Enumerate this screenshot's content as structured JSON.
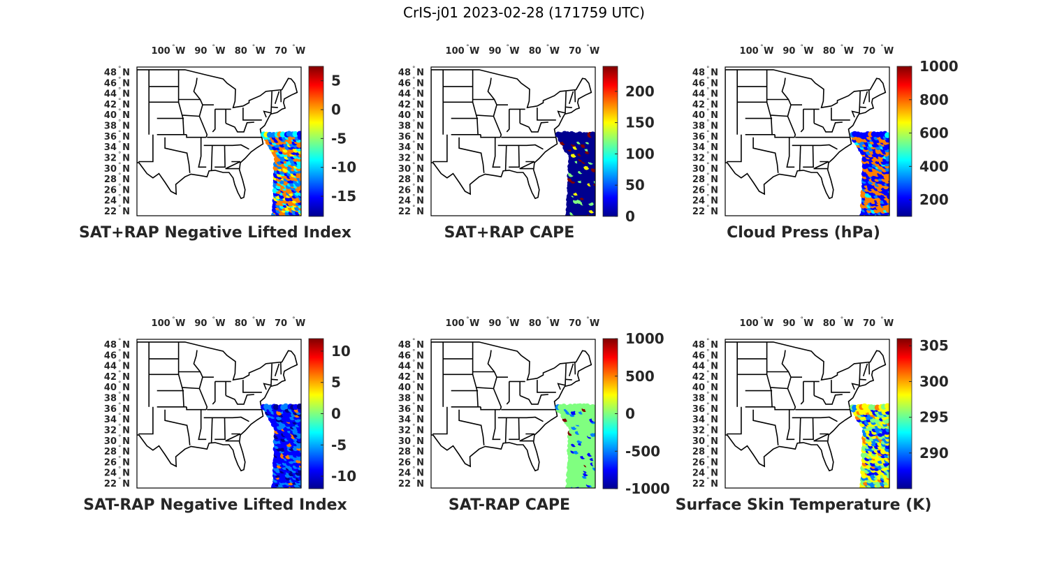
{
  "figure": {
    "title": "CrIS-j01 2023-02-28 (171759 UTC)"
  },
  "colormap": [
    "#00008f",
    "#0000ff",
    "#0080ff",
    "#00ffff",
    "#80ff80",
    "#ffff00",
    "#ff8000",
    "#ff0000",
    "#800000"
  ],
  "map": {
    "lon_labels": [
      {
        "deg": "100",
        "dir": "W"
      },
      {
        "deg": "90",
        "dir": "W"
      },
      {
        "deg": "80",
        "dir": "W"
      },
      {
        "deg": "70",
        "dir": "W"
      }
    ],
    "lat_labels": [
      {
        "deg": "48",
        "dir": "N"
      },
      {
        "deg": "46",
        "dir": "N"
      },
      {
        "deg": "44",
        "dir": "N"
      },
      {
        "deg": "42",
        "dir": "N"
      },
      {
        "deg": "40",
        "dir": "N"
      },
      {
        "deg": "38",
        "dir": "N"
      },
      {
        "deg": "36",
        "dir": "N"
      },
      {
        "deg": "34",
        "dir": "N"
      },
      {
        "deg": "32",
        "dir": "N"
      },
      {
        "deg": "30",
        "dir": "N"
      },
      {
        "deg": "28",
        "dir": "N"
      },
      {
        "deg": "26",
        "dir": "N"
      },
      {
        "deg": "24",
        "dir": "N"
      },
      {
        "deg": "22",
        "dir": "N"
      }
    ],
    "degree_symbol": "°"
  },
  "panels": [
    {
      "id": "sat-rap-plus-nli",
      "title": "SAT+RAP Negative Lifted Index",
      "colorbar": {
        "min": -18.5,
        "max": 7.5,
        "ticks": [
          "5",
          "0",
          "-5",
          "-10",
          "-15"
        ],
        "tick_values": [
          5,
          0,
          -5,
          -10,
          -15
        ]
      },
      "swath": {
        "lat_range": [
          22,
          37
        ],
        "pattern": "mix-orange-blue"
      }
    },
    {
      "id": "sat-rap-plus-cape",
      "title": "SAT+RAP CAPE",
      "colorbar": {
        "min": 0,
        "max": 240,
        "ticks": [
          "200",
          "150",
          "100",
          "50",
          "0"
        ],
        "tick_values": [
          200,
          150,
          100,
          50,
          0
        ]
      },
      "swath": {
        "lat_range": [
          22,
          37
        ],
        "pattern": "mostly-low"
      }
    },
    {
      "id": "cloud-press",
      "title": "Cloud Press (hPa)",
      "colorbar": {
        "min": 100,
        "max": 1000,
        "ticks": [
          "1000",
          "800",
          "600",
          "400",
          "200"
        ],
        "tick_values": [
          1000,
          800,
          600,
          400,
          200
        ]
      },
      "swath": {
        "lat_range": [
          22,
          37
        ],
        "pattern": "scattered-blue-orange"
      }
    },
    {
      "id": "sat-minus-rap-nli",
      "title": "SAT-RAP Negative Lifted Index",
      "colorbar": {
        "min": -12,
        "max": 12,
        "ticks": [
          "10",
          "5",
          "0",
          "-5",
          "-10"
        ],
        "tick_values": [
          10,
          5,
          0,
          -5,
          -10
        ]
      },
      "swath": {
        "lat_range": [
          22,
          37
        ],
        "pattern": "mostly-blue"
      }
    },
    {
      "id": "sat-minus-rap-cape",
      "title": "SAT-RAP CAPE",
      "colorbar": {
        "min": -1000,
        "max": 1000,
        "ticks": [
          "1000",
          "500",
          "0",
          "-500",
          "-1000"
        ],
        "tick_values": [
          1000,
          500,
          0,
          -500,
          -1000
        ]
      },
      "swath": {
        "lat_range": [
          22,
          37
        ],
        "pattern": "mostly-green"
      }
    },
    {
      "id": "surface-skin-temp",
      "title": "Surface Skin Temperature (K)",
      "colorbar": {
        "min": 285,
        "max": 306,
        "ticks": [
          "305",
          "300",
          "295",
          "290"
        ],
        "tick_values": [
          305,
          300,
          295,
          290
        ]
      },
      "swath": {
        "lat_range": [
          22,
          37
        ],
        "pattern": "warm-south"
      }
    }
  ]
}
